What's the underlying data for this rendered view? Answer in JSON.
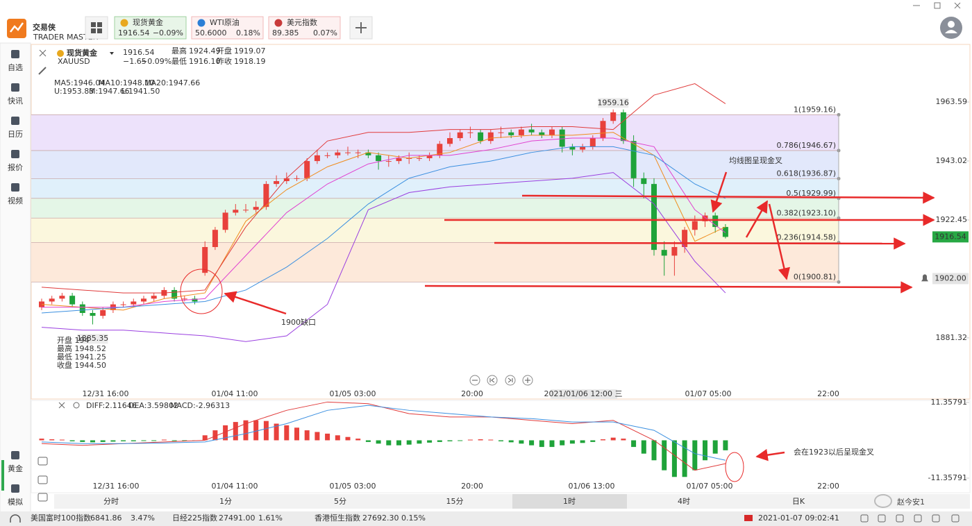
{
  "app": {
    "logo": "交易侠",
    "logo_sub": "TRADER MASTER",
    "tabs": [
      {
        "name": "现货黄金",
        "price": "1916.54",
        "change": "−0.09%"
      },
      {
        "name": "WTI原油",
        "price": "50.6000",
        "change": "0.18%"
      },
      {
        "name": "美元指数",
        "price": "89.385",
        "change": "0.07%"
      }
    ]
  },
  "sidebar": [
    "自选",
    "快讯",
    "日历",
    "报价",
    "视频",
    "黄金",
    "模拟"
  ],
  "symbol": {
    "name": "现货黄金",
    "code": "XAUUSD",
    "price": "1916.54",
    "change": "−1.65",
    "change_pct": "−0.09%",
    "stats": [
      {
        "label": "最高",
        "value": "1924.49"
      },
      {
        "label": "开盘",
        "value": "1919.07"
      },
      {
        "label": "最低",
        "value": "1916.10"
      },
      {
        "label": "昨收",
        "value": "1918.19"
      }
    ]
  },
  "chart_data": [
    {
      "type": "candlestick",
      "legend": [
        {
          "label": "MA5:1946.04",
          "color": "#f08c1c"
        },
        {
          "label": "MA10:1948.10",
          "color": "#e040d0"
        },
        {
          "label": "MA20:1947.66",
          "color": "#2aa6c0"
        },
        {
          "label": "U:1953.83",
          "color": "#e03a3a"
        },
        {
          "label": "M:1947.66",
          "color": "#3a8fe0"
        },
        {
          "label": "L:1941.50",
          "color": "#9a3fe0"
        }
      ],
      "time_labels": [
        "12/31 16:00",
        "01/04 11:00",
        "01/05 03:00",
        "20:00",
        "2021/01/06 12:00 三",
        "01/07 05:00",
        "22:00"
      ],
      "open": [
        1892,
        1894,
        1895,
        1896,
        1893,
        1890,
        1889,
        1891,
        1893,
        1893,
        1894,
        1895,
        1896,
        1898,
        1895,
        1895,
        1904,
        1913,
        1919,
        1925,
        1926,
        1926,
        1927,
        1935,
        1936,
        1937,
        1937,
        1943,
        1945,
        1945,
        1946,
        1946,
        1946,
        1945,
        1943,
        1943,
        1944,
        1944,
        1944,
        1945,
        1949,
        1951,
        1953,
        1953,
        1950,
        1953,
        1953,
        1952,
        1954,
        1953,
        1952,
        1954,
        1948,
        1947,
        1948,
        1951,
        1957,
        1960,
        1950,
        1937,
        1935,
        1912,
        1910,
        1913,
        1919,
        1922,
        1924,
        1920
      ],
      "high": [
        1895,
        1896,
        1897,
        1897,
        1894,
        1891,
        1892,
        1894,
        1894,
        1895,
        1896,
        1897,
        1899,
        1899,
        1896,
        1896,
        1915,
        1920,
        1926,
        1928,
        1928,
        1929,
        1936,
        1938,
        1939,
        1938,
        1944,
        1947,
        1946,
        1947,
        1948,
        1947,
        1947,
        1946,
        1945,
        1945,
        1946,
        1945,
        1946,
        1950,
        1953,
        1954,
        1955,
        1954,
        1954,
        1955,
        1954,
        1955,
        1956,
        1954,
        1955,
        1955,
        1949,
        1949,
        1952,
        1958,
        1961,
        1961,
        1952,
        1939,
        1937,
        1915,
        1915,
        1920,
        1924,
        1925,
        1925,
        1921
      ],
      "low": [
        1891,
        1893,
        1894,
        1892,
        1889,
        1886,
        1888,
        1890,
        1892,
        1892,
        1893,
        1894,
        1895,
        1894,
        1894,
        1893,
        1903,
        1912,
        1918,
        1924,
        1925,
        1925,
        1926,
        1934,
        1935,
        1936,
        1936,
        1942,
        1944,
        1944,
        1945,
        1944,
        1944,
        1940,
        1941,
        1942,
        1942,
        1943,
        1943,
        1944,
        1948,
        1950,
        1951,
        1949,
        1949,
        1951,
        1951,
        1951,
        1952,
        1951,
        1951,
        1946,
        1945,
        1946,
        1947,
        1950,
        1956,
        1949,
        1934,
        1930,
        1910,
        1903,
        1903,
        1911,
        1917,
        1920,
        1918,
        1916
      ],
      "close": [
        1894,
        1895,
        1896,
        1893,
        1890,
        1889,
        1891,
        1893,
        1893,
        1894,
        1895,
        1896,
        1898,
        1895,
        1895,
        1894,
        1913,
        1919,
        1925,
        1926,
        1926,
        1927,
        1935,
        1936,
        1937,
        1937,
        1943,
        1945,
        1945,
        1946,
        1946,
        1946,
        1945,
        1943,
        1943,
        1944,
        1944,
        1944,
        1945,
        1949,
        1951,
        1953,
        1953,
        1950,
        1953,
        1953,
        1952,
        1954,
        1953,
        1952,
        1954,
        1948,
        1947,
        1948,
        1951,
        1957,
        1960,
        1950,
        1937,
        1935,
        1912,
        1910,
        1913,
        1919,
        1922,
        1924,
        1920,
        1916.54
      ],
      "up_color": "#e8413c",
      "down_color": "#1fa33a",
      "line_x": [
        0,
        4,
        8,
        12,
        16,
        20,
        24,
        28,
        32,
        36,
        40,
        44,
        48,
        52,
        56,
        60,
        64,
        67
      ],
      "lines": [
        {
          "color": "#f08c1c",
          "values": [
            1893,
            1892,
            1891,
            1895,
            1897,
            1922,
            1933,
            1941,
            1946,
            1944,
            1946,
            1951,
            1952,
            1952,
            1953,
            1945,
            1915,
            1920
          ]
        },
        {
          "color": "#e040d0",
          "values": [
            1892,
            1892,
            1892,
            1894,
            1895,
            1910,
            1925,
            1935,
            1942,
            1945,
            1945,
            1947,
            1950,
            1951,
            1951,
            1948,
            1926,
            1918
          ]
        },
        {
          "color": "#3a8fe0",
          "values": [
            1890,
            1891,
            1892,
            1893,
            1894,
            1898,
            1906,
            1916,
            1928,
            1937,
            1941,
            1943,
            1946,
            1948,
            1948,
            1945,
            1935,
            1930
          ]
        },
        {
          "color": "#e03a3a",
          "values": [
            1899,
            1898,
            1897,
            1897,
            1898,
            1920,
            1937,
            1950,
            1953,
            1953,
            1954,
            1954,
            1955,
            1955,
            1954,
            1966,
            1970,
            1963
          ]
        },
        {
          "color": "#9a3fe0",
          "values": [
            1885,
            1884,
            1884,
            1883,
            1882,
            1880,
            1882,
            1893,
            1926,
            1932,
            1934,
            1935,
            1936,
            1937,
            1939,
            1928,
            1908,
            1897
          ]
        }
      ],
      "ylim": [
        1862.4,
        1983.45
      ],
      "yticks": [
        1963.59,
        1943.02,
        1922.45,
        1881.32
      ],
      "fib_levels": [
        {
          "value": 1959.16,
          "label": "1(1959.16)"
        },
        {
          "value": 1946.67,
          "label": "0.786(1946.67)"
        },
        {
          "value": 1936.87,
          "label": "0.618(1936.87)"
        },
        {
          "value": 1929.99,
          "label": "0.5(1929.99)"
        },
        {
          "value": 1923.1,
          "label": "0.382(1923.10)"
        },
        {
          "value": 1914.58,
          "label": "0.236(1914.58)"
        },
        {
          "value": 1900.81,
          "label": "0(1900.81)"
        }
      ],
      "peak_label": 1959.16,
      "low_label": 1885.35,
      "last_price": 1916.54,
      "alert": {
        "value": 1902,
        "label": "1902.00"
      }
    },
    {
      "type": "macd",
      "legend": [
        {
          "label": "DIFF:2.11646",
          "color": "#e03a3a"
        },
        {
          "label": "DEA:3.59802",
          "color": "#3a8fe0"
        },
        {
          "label": "MACD:-2.96313",
          "color": "#3a6fe0"
        }
      ],
      "time_labels": [
        "12/31 16:00",
        "01/04 11:00",
        "01/05 03:00",
        "20:00",
        "01/06 13:00",
        "01/07 05:00",
        "22:00"
      ],
      "histogram": [
        0.5,
        0.3,
        0.2,
        -0.3,
        -0.5,
        -0.6,
        -0.5,
        -0.4,
        -0.3,
        -0.3,
        -0.2,
        -0.2,
        0.2,
        -0.2,
        -0.3,
        -0.2,
        1.5,
        3,
        4.5,
        5.5,
        6,
        6,
        5.8,
        5,
        4.5,
        3.8,
        3,
        2.5,
        2,
        1.5,
        1,
        0.5,
        -0.5,
        -1,
        -1.5,
        -1.5,
        -1.3,
        -1,
        -0.7,
        -0.5,
        -0.3,
        -0.2,
        0.2,
        0.3,
        0.2,
        -0.3,
        -0.6,
        -1,
        -1.5,
        -2,
        -2,
        -1.5,
        -1,
        -0.8,
        -0.5,
        0.3,
        0.8,
        0.5,
        -2,
        -4,
        -6,
        -9,
        -11,
        -11,
        -9,
        -6,
        -4,
        -3
      ],
      "up_color": "#e8413c",
      "down_color": "#1fa33a",
      "line_x": [
        0,
        4,
        8,
        12,
        16,
        20,
        24,
        28,
        32,
        36,
        40,
        44,
        48,
        52,
        56,
        60,
        64,
        67
      ],
      "lines": [
        {
          "color": "#e03a3a",
          "values": [
            -1,
            -1.5,
            -1,
            -0.5,
            0,
            5,
            9,
            11.5,
            11,
            8,
            7,
            7,
            6,
            5,
            6,
            0,
            -9,
            -7
          ]
        },
        {
          "color": "#3a8fe0",
          "values": [
            -0.5,
            -1,
            -1,
            -0.8,
            -0.5,
            2,
            5,
            9,
            10.5,
            9,
            8,
            7,
            6.5,
            5.5,
            5.5,
            3,
            -4,
            -6
          ]
        }
      ],
      "ylim": [
        -11.35791,
        11.35791
      ],
      "yticks": [
        11.35791,
        -11.35791
      ]
    }
  ],
  "tooltip": [
    "开盘 194",
    "最高 1948.52",
    "最低 1941.25",
    "收盘 1944.50"
  ],
  "annotations": [
    "均线图呈现金叉",
    "1900缺口",
    "会在1923以后呈现金叉"
  ],
  "period_tabs": [
    "分时",
    "1分",
    "5分",
    "15分",
    "1时",
    "4时",
    "日K"
  ],
  "status_bar": {
    "tickers": [
      {
        "name": "美国富时100指数",
        "price": "6841.86",
        "change": "3.47%"
      },
      {
        "name": "日经225指数",
        "price": "27491.00",
        "change": "1.61%"
      },
      {
        "name": "香港恒生指数",
        "price": "27692.30",
        "change": "0.15%"
      }
    ],
    "datetime": "2021-01-07 09:02:41"
  },
  "watermark": "赵今安1"
}
